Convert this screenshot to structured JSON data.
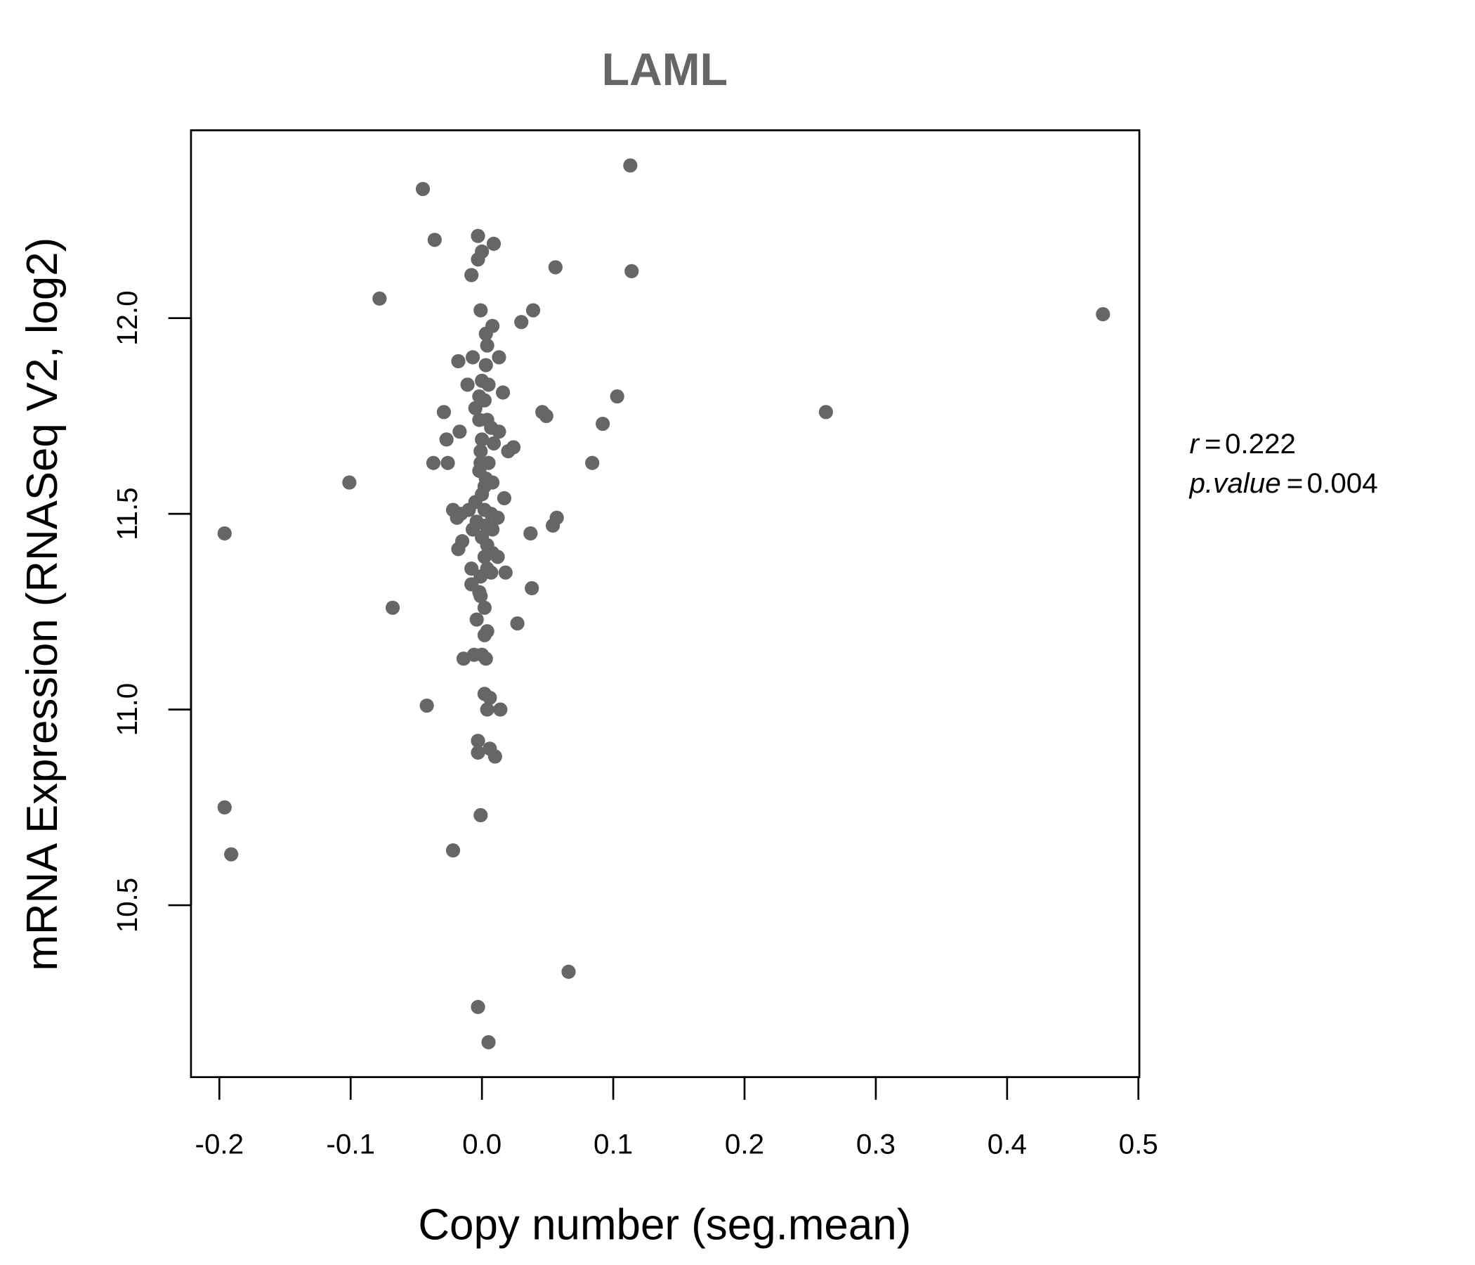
{
  "chart_data": {
    "type": "scatter",
    "title": "LAML",
    "xlabel": "Copy number (seg.mean)",
    "ylabel": "mRNA Expression (RNASeq V2, log2)",
    "xlim": [
      -0.22,
      0.5
    ],
    "ylim": [
      10.08,
      12.49
    ],
    "xticks": [
      -0.2,
      -0.1,
      0.0,
      0.1,
      0.2,
      0.3,
      0.4,
      0.5
    ],
    "xtick_labels": [
      "-0.2",
      "-0.1",
      "0.0",
      "0.1",
      "0.2",
      "0.3",
      "0.4",
      "0.5"
    ],
    "yticks": [
      10.5,
      11.0,
      11.5,
      12.0
    ],
    "ytick_labels": [
      "10.5",
      "11.0",
      "11.5",
      "12.0"
    ],
    "grid": false,
    "point_color": "#666666",
    "stats": {
      "r_label": "r",
      "r_value": "0.222",
      "p_label": "p.value",
      "p_value": "0.004",
      "eq": "="
    },
    "points": [
      [
        0.113,
        12.39
      ],
      [
        -0.045,
        12.33
      ],
      [
        -0.036,
        12.2
      ],
      [
        -0.003,
        12.21
      ],
      [
        0.009,
        12.19
      ],
      [
        0.0,
        12.17
      ],
      [
        -0.003,
        12.15
      ],
      [
        -0.008,
        12.11
      ],
      [
        0.056,
        12.13
      ],
      [
        0.114,
        12.12
      ],
      [
        -0.078,
        12.05
      ],
      [
        0.473,
        12.01
      ],
      [
        -0.001,
        12.02
      ],
      [
        0.039,
        12.02
      ],
      [
        0.03,
        11.99
      ],
      [
        0.008,
        11.98
      ],
      [
        0.003,
        11.96
      ],
      [
        0.004,
        11.93
      ],
      [
        -0.007,
        11.9
      ],
      [
        0.013,
        11.9
      ],
      [
        -0.018,
        11.89
      ],
      [
        0.003,
        11.88
      ],
      [
        -0.011,
        11.83
      ],
      [
        0.0,
        11.84
      ],
      [
        0.005,
        11.83
      ],
      [
        0.016,
        11.81
      ],
      [
        -0.002,
        11.8
      ],
      [
        0.103,
        11.8
      ],
      [
        0.002,
        11.79
      ],
      [
        -0.029,
        11.76
      ],
      [
        -0.005,
        11.77
      ],
      [
        0.046,
        11.76
      ],
      [
        0.049,
        11.75
      ],
      [
        0.262,
        11.76
      ],
      [
        -0.002,
        11.74
      ],
      [
        0.004,
        11.74
      ],
      [
        0.092,
        11.73
      ],
      [
        -0.017,
        11.71
      ],
      [
        0.007,
        11.72
      ],
      [
        0.013,
        11.71
      ],
      [
        -0.027,
        11.69
      ],
      [
        0.0,
        11.69
      ],
      [
        0.009,
        11.68
      ],
      [
        0.024,
        11.67
      ],
      [
        0.02,
        11.66
      ],
      [
        -0.001,
        11.66
      ],
      [
        -0.037,
        11.63
      ],
      [
        -0.026,
        11.63
      ],
      [
        -0.001,
        11.63
      ],
      [
        0.005,
        11.63
      ],
      [
        0.084,
        11.63
      ],
      [
        -0.002,
        11.61
      ],
      [
        0.003,
        11.59
      ],
      [
        0.008,
        11.58
      ],
      [
        -0.101,
        11.58
      ],
      [
        0.002,
        11.57
      ],
      [
        0.017,
        11.54
      ],
      [
        0.0,
        11.55
      ],
      [
        -0.005,
        11.53
      ],
      [
        -0.022,
        11.51
      ],
      [
        -0.016,
        11.5
      ],
      [
        -0.01,
        11.51
      ],
      [
        0.002,
        11.51
      ],
      [
        0.007,
        11.5
      ],
      [
        0.057,
        11.49
      ],
      [
        -0.019,
        11.49
      ],
      [
        -0.004,
        11.48
      ],
      [
        0.012,
        11.49
      ],
      [
        0.003,
        11.47
      ],
      [
        -0.007,
        11.46
      ],
      [
        0.054,
        11.47
      ],
      [
        -0.196,
        11.45
      ],
      [
        0.037,
        11.45
      ],
      [
        0.008,
        11.46
      ],
      [
        0.0,
        11.44
      ],
      [
        -0.015,
        11.43
      ],
      [
        0.004,
        11.42
      ],
      [
        -0.018,
        11.41
      ],
      [
        0.008,
        11.4
      ],
      [
        0.002,
        11.39
      ],
      [
        0.012,
        11.39
      ],
      [
        -0.008,
        11.36
      ],
      [
        0.004,
        11.36
      ],
      [
        0.018,
        11.35
      ],
      [
        0.007,
        11.35
      ],
      [
        -0.001,
        11.34
      ],
      [
        -0.008,
        11.32
      ],
      [
        0.038,
        11.31
      ],
      [
        -0.002,
        11.3
      ],
      [
        -0.001,
        11.29
      ],
      [
        -0.068,
        11.26
      ],
      [
        0.002,
        11.26
      ],
      [
        0.027,
        11.22
      ],
      [
        -0.004,
        11.23
      ],
      [
        0.004,
        11.2
      ],
      [
        0.002,
        11.19
      ],
      [
        -0.014,
        11.13
      ],
      [
        -0.006,
        11.14
      ],
      [
        0.0,
        11.14
      ],
      [
        0.003,
        11.13
      ],
      [
        -0.042,
        11.01
      ],
      [
        0.002,
        11.04
      ],
      [
        0.006,
        11.03
      ],
      [
        0.004,
        11.0
      ],
      [
        0.014,
        11.0
      ],
      [
        -0.003,
        10.92
      ],
      [
        -0.003,
        10.89
      ],
      [
        0.006,
        10.9
      ],
      [
        0.01,
        10.88
      ],
      [
        -0.196,
        10.75
      ],
      [
        -0.001,
        10.73
      ],
      [
        -0.191,
        10.63
      ],
      [
        -0.022,
        10.64
      ],
      [
        0.066,
        10.33
      ],
      [
        -0.003,
        10.24
      ],
      [
        0.005,
        10.15
      ]
    ]
  }
}
